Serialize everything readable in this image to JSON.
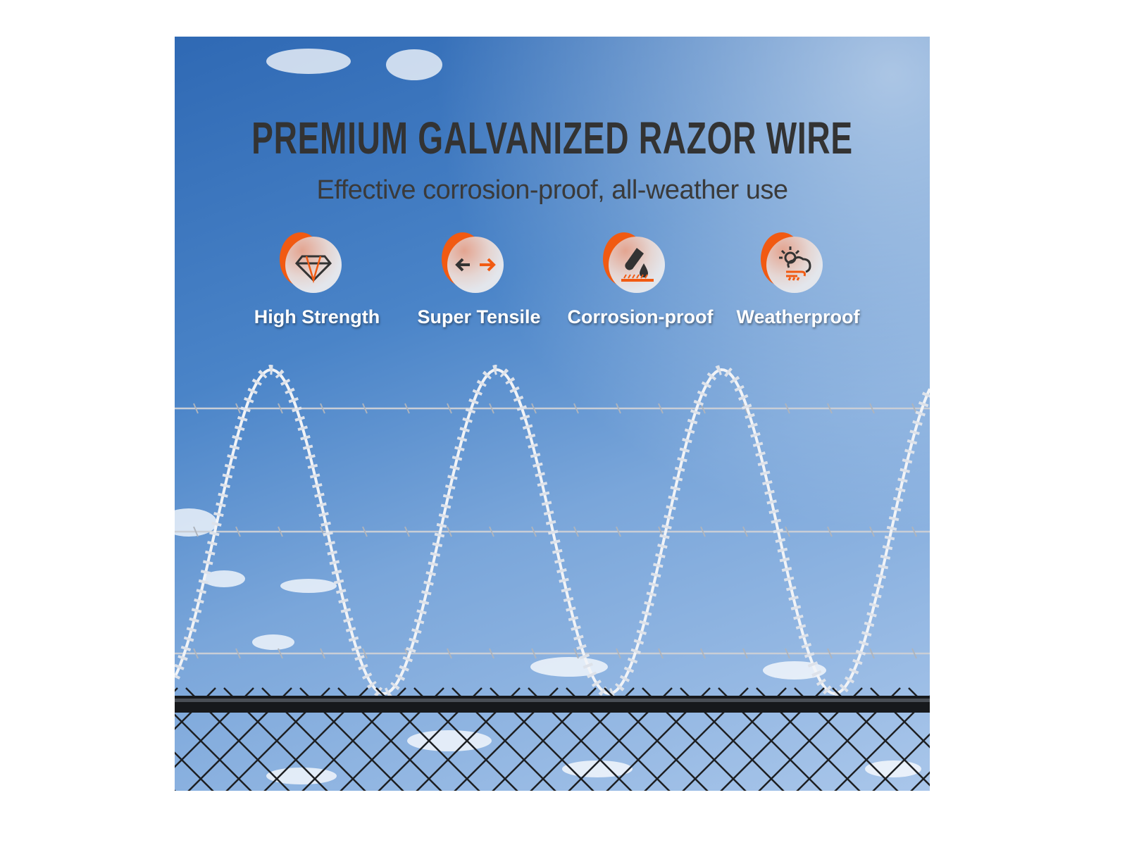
{
  "headline": "PREMIUM GALVANIZED RAZOR WIRE",
  "subheadline": "Effective corrosion-proof, all-weather use",
  "features": [
    {
      "label": "High Strength",
      "icon": "diamond-icon"
    },
    {
      "label": "Super Tensile",
      "icon": "tensile-arrows-icon"
    },
    {
      "label": "Corrosion-proof",
      "icon": "test-tube-drop-icon"
    },
    {
      "label": "Weatherproof",
      "icon": "sun-cloud-wind-icon"
    }
  ],
  "colors": {
    "accent": "#f15a12",
    "icon_dark": "#333333",
    "sky": "#4a84c8",
    "title": "#333333"
  }
}
